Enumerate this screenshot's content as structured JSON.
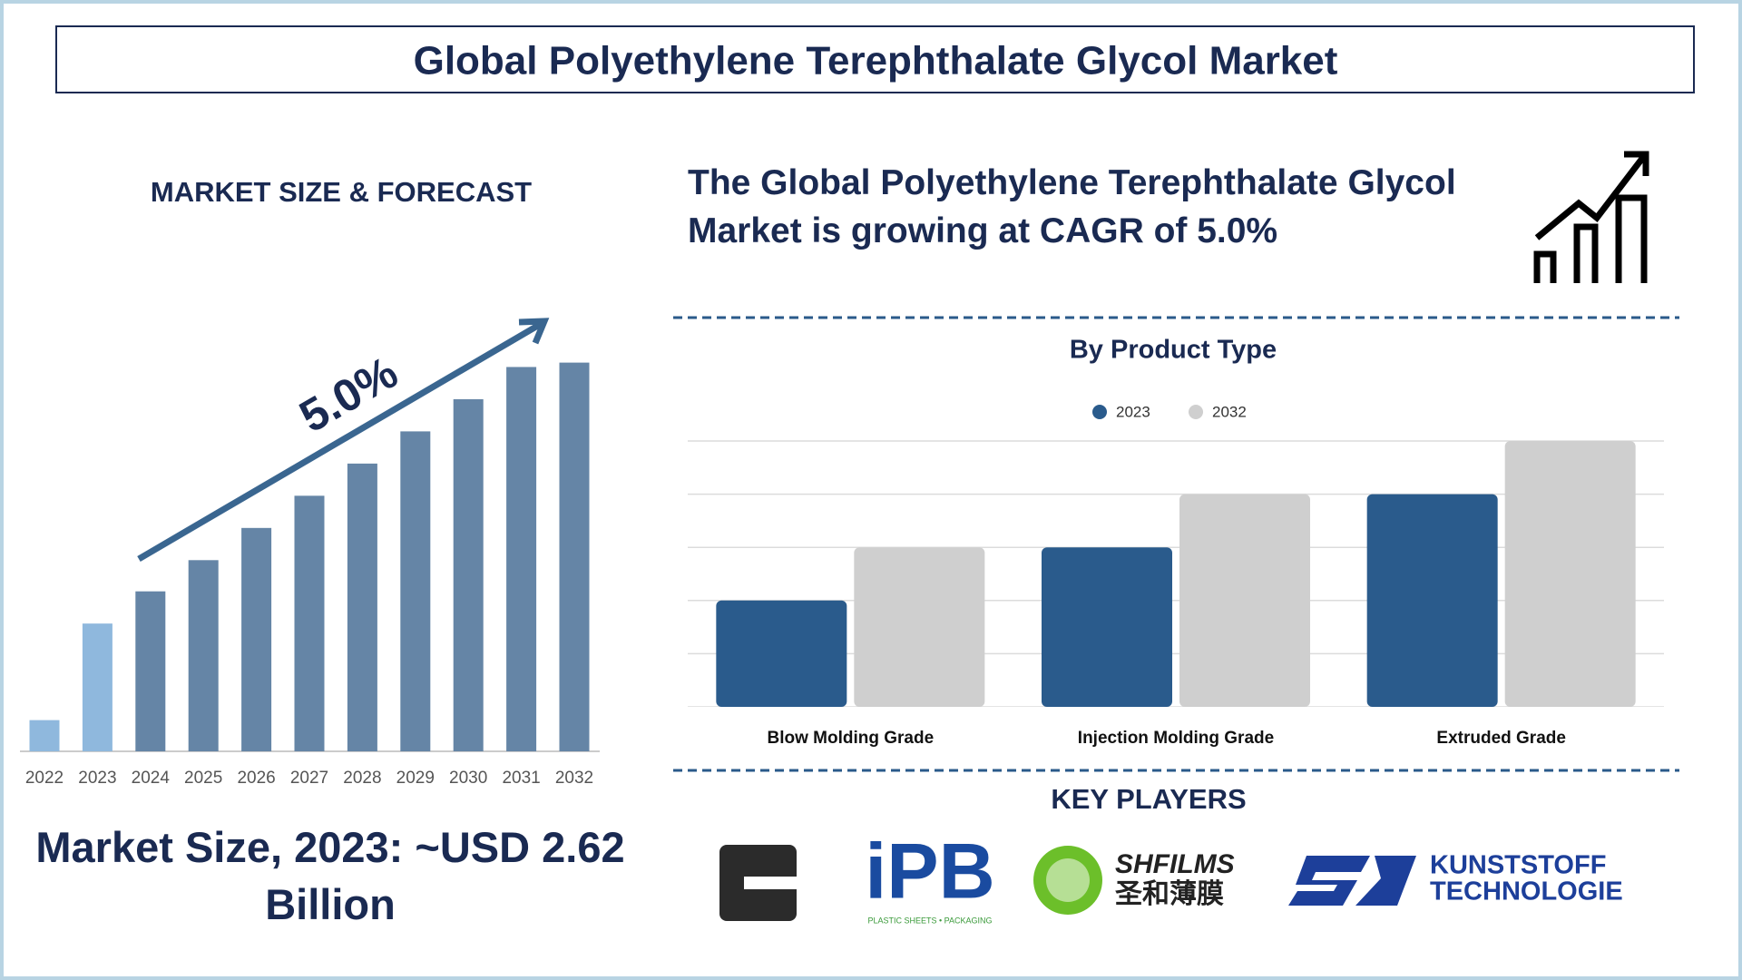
{
  "header": {
    "title": "Global Polyethylene Terephthalate Glycol Market"
  },
  "cagr_text": "The Global Polyethylene Terephthalate Glycol Market is growing at CAGR of 5.0%",
  "market_size_text": "Market Size, 2023: ~USD 2.62 Billion",
  "key_players": {
    "title": "KEY PLAYERS",
    "logos": [
      {
        "name": "iPB",
        "tagline": "PLASTIC SHEETS • PACKAGING"
      },
      {
        "name": "SHFILMS",
        "tagline": "圣和薄膜"
      },
      {
        "name": "KUNSTSTOFF",
        "tagline": "TECHNOLOGIE"
      }
    ]
  },
  "chart_data": [
    {
      "type": "bar",
      "title": "MARKET SIZE & FORECAST",
      "annotation": "5.0%",
      "categories": [
        "2022",
        "2023",
        "2024",
        "2025",
        "2026",
        "2027",
        "2028",
        "2029",
        "2030",
        "2031",
        "2032"
      ],
      "values": [
        0.64,
        2.62,
        3.28,
        3.92,
        4.58,
        5.24,
        5.9,
        6.56,
        7.22,
        7.88,
        7.97
      ],
      "colors": [
        "#8fb8dd",
        "#8fb8dd",
        "#6585a6",
        "#6585a6",
        "#6585a6",
        "#6585a6",
        "#6585a6",
        "#6585a6",
        "#6585a6",
        "#6585a6",
        "#6585a6"
      ],
      "ylim": [
        0,
        8
      ]
    },
    {
      "type": "bar",
      "title": "By Product Type",
      "categories": [
        "Blow Molding Grade",
        "Injection Molding Grade",
        "Extruded Grade"
      ],
      "series": [
        {
          "name": "2023",
          "color": "#2a5b8c",
          "values": [
            2,
            3,
            4
          ]
        },
        {
          "name": "2032",
          "color": "#cfcfcf",
          "values": [
            3,
            4,
            5
          ]
        }
      ],
      "ylim": [
        0,
        5
      ],
      "yticks": [
        0,
        1,
        2,
        3,
        4,
        5
      ],
      "grid": true
    }
  ]
}
